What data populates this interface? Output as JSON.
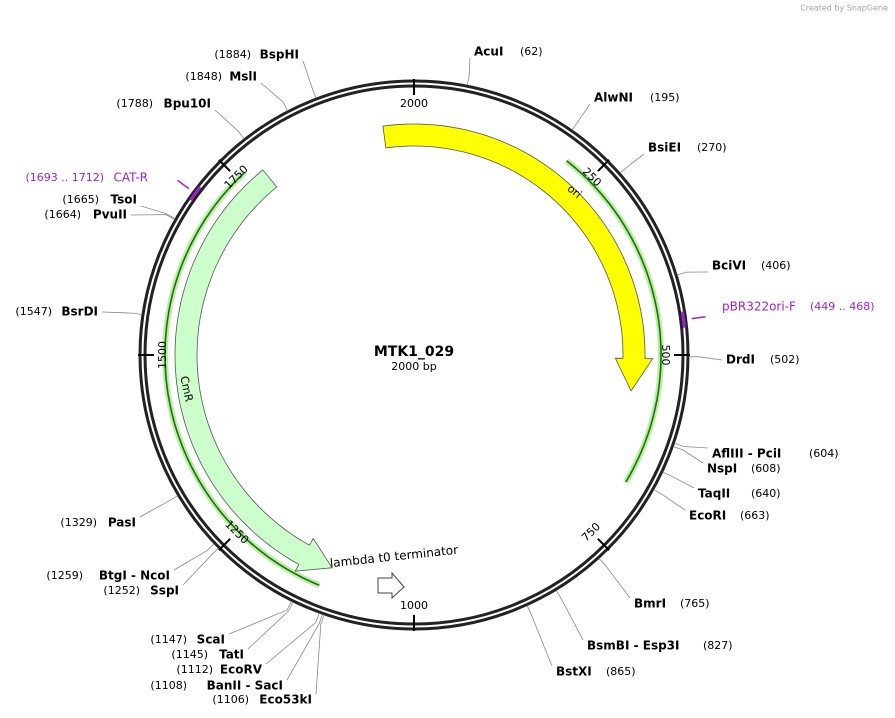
{
  "credit": "Created by SnapGene",
  "plasmid": {
    "name": "MTK1_029",
    "length_label": "2000 bp"
  },
  "ticks": [
    2000,
    250,
    500,
    750,
    1000,
    1250,
    1500,
    1750
  ],
  "features": [
    {
      "name": "ori"
    },
    {
      "name": "CmR"
    },
    {
      "name": "lambda t0 terminator"
    }
  ],
  "primers": [
    {
      "name": "CAT-R",
      "label": "(1693 .. 1712)",
      "start": 1693,
      "end": 1712
    },
    {
      "name": "pBR322ori-F",
      "label": "(449 .. 468)",
      "start": 449,
      "end": 468
    }
  ],
  "sites": [
    {
      "name": "AcuI",
      "label": "(62)",
      "position": 62
    },
    {
      "name": "AlwNI",
      "label": "(195)",
      "position": 195
    },
    {
      "name": "BsiEI",
      "label": "(270)",
      "position": 270
    },
    {
      "name": "BciVI",
      "label": "(406)",
      "position": 406
    },
    {
      "name": "DrdI",
      "label": "(502)",
      "position": 502
    },
    {
      "name": "AflIII - PciI",
      "label": "(604)",
      "position": 604
    },
    {
      "name": "NspI",
      "label": "(608)",
      "position": 608
    },
    {
      "name": "TaqII",
      "label": "(640)",
      "position": 640
    },
    {
      "name": "EcoRI",
      "label": "(663)",
      "position": 663
    },
    {
      "name": "BmrI",
      "label": "(765)",
      "position": 765
    },
    {
      "name": "BsmBI - Esp3I",
      "label": "(827)",
      "position": 827
    },
    {
      "name": "BstXI",
      "label": "(865)",
      "position": 865
    },
    {
      "name": "BspHI",
      "label": "(1884)",
      "position": 1884
    },
    {
      "name": "MslI",
      "label": "(1848)",
      "position": 1848
    },
    {
      "name": "Bpu10I",
      "label": "(1788)",
      "position": 1788
    },
    {
      "name": "TsoI",
      "label": "(1665)",
      "position": 1665
    },
    {
      "name": "PvuII",
      "label": "(1664)",
      "position": 1664
    },
    {
      "name": "BsrDI",
      "label": "(1547)",
      "position": 1547
    },
    {
      "name": "PasI",
      "label": "(1329)",
      "position": 1329
    },
    {
      "name": "BtgI - NcoI",
      "label": "(1259)",
      "position": 1259
    },
    {
      "name": "SspI",
      "label": "(1252)",
      "position": 1252
    },
    {
      "name": "ScaI",
      "label": "(1147)",
      "position": 1147
    },
    {
      "name": "TatI",
      "label": "(1145)",
      "position": 1145
    },
    {
      "name": "EcoRV",
      "label": "(1112)",
      "position": 1112
    },
    {
      "name": "BanII - SacI",
      "label": "(1108)",
      "position": 1108
    },
    {
      "name": "Eco53kI",
      "label": "(1106)",
      "position": 1106
    }
  ]
}
